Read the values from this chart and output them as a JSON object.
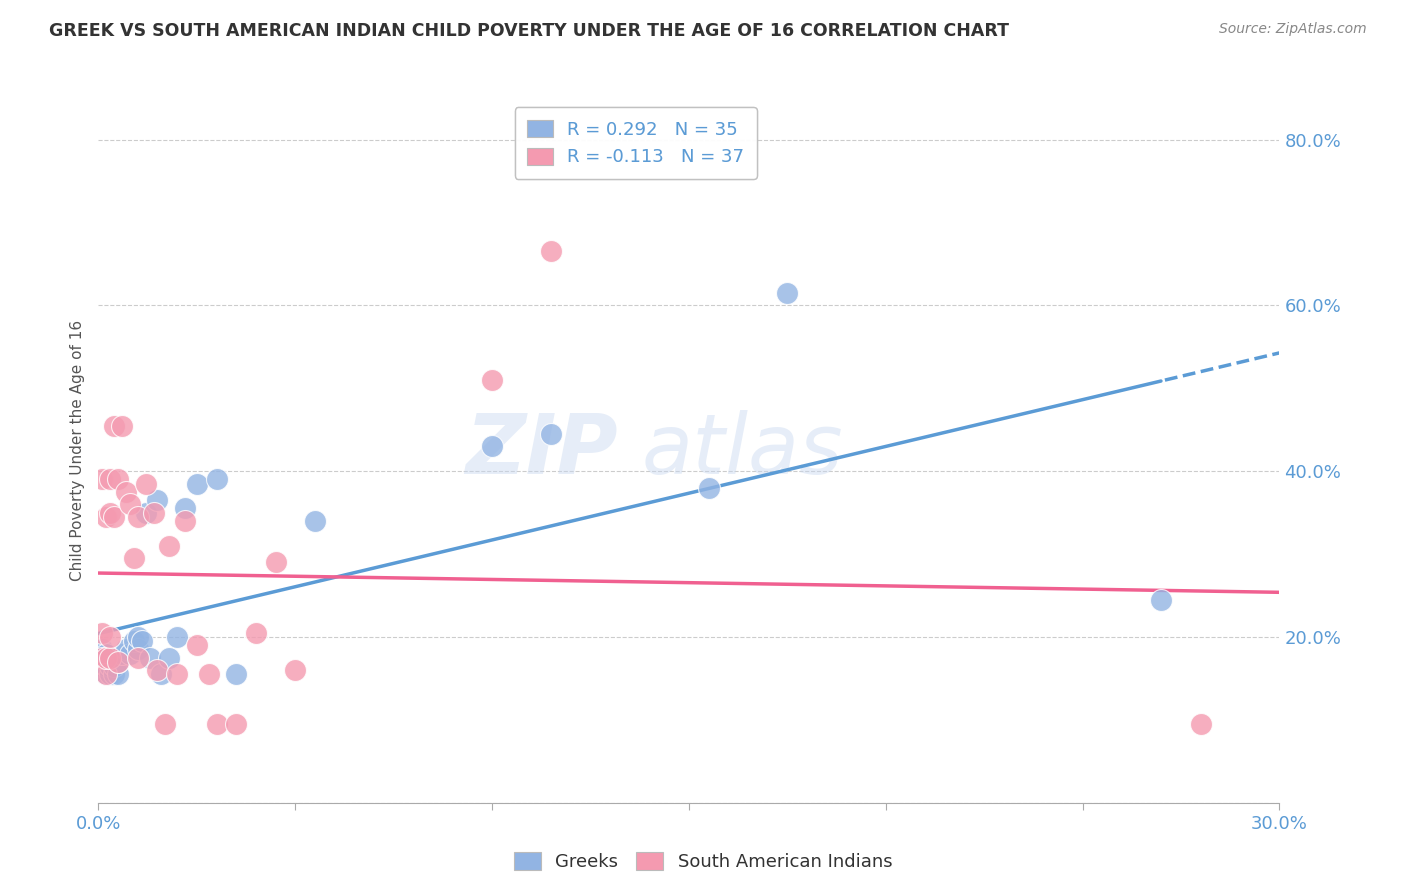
{
  "title": "GREEK VS SOUTH AMERICAN INDIAN CHILD POVERTY UNDER THE AGE OF 16 CORRELATION CHART",
  "source": "Source: ZipAtlas.com",
  "ylabel": "Child Poverty Under the Age of 16",
  "xlim": [
    0.0,
    0.3
  ],
  "ylim": [
    0.0,
    0.85
  ],
  "xticks": [
    0.0,
    0.05,
    0.1,
    0.15,
    0.2,
    0.25,
    0.3
  ],
  "yticks": [
    0.0,
    0.2,
    0.4,
    0.6,
    0.8
  ],
  "greek_color": "#92b4e3",
  "sam_color": "#f49ab0",
  "greek_line_color": "#5b9bd5",
  "sam_line_color": "#f06090",
  "axis_color": "#5b9bd5",
  "greek_R": 0.292,
  "greek_N": 35,
  "sam_R": -0.113,
  "sam_N": 37,
  "legend_label_greek": "Greeks",
  "legend_label_sam": "South American Indians",
  "watermark": "ZIPatlas",
  "greeks_x": [
    0.001,
    0.001,
    0.002,
    0.002,
    0.002,
    0.003,
    0.003,
    0.003,
    0.004,
    0.004,
    0.005,
    0.005,
    0.006,
    0.007,
    0.008,
    0.009,
    0.01,
    0.01,
    0.011,
    0.012,
    0.013,
    0.015,
    0.016,
    0.018,
    0.02,
    0.022,
    0.025,
    0.03,
    0.035,
    0.055,
    0.1,
    0.115,
    0.155,
    0.175,
    0.27
  ],
  "greeks_y": [
    0.165,
    0.185,
    0.155,
    0.165,
    0.18,
    0.155,
    0.165,
    0.175,
    0.155,
    0.165,
    0.155,
    0.17,
    0.18,
    0.185,
    0.18,
    0.195,
    0.185,
    0.2,
    0.195,
    0.35,
    0.175,
    0.365,
    0.155,
    0.175,
    0.2,
    0.355,
    0.385,
    0.39,
    0.155,
    0.34,
    0.43,
    0.445,
    0.38,
    0.615,
    0.245
  ],
  "sam_x": [
    0.001,
    0.001,
    0.001,
    0.002,
    0.002,
    0.002,
    0.003,
    0.003,
    0.003,
    0.003,
    0.004,
    0.004,
    0.005,
    0.005,
    0.006,
    0.007,
    0.008,
    0.009,
    0.01,
    0.01,
    0.012,
    0.014,
    0.015,
    0.017,
    0.018,
    0.02,
    0.022,
    0.025,
    0.028,
    0.03,
    0.035,
    0.04,
    0.045,
    0.05,
    0.1,
    0.115,
    0.28
  ],
  "sam_y": [
    0.175,
    0.205,
    0.39,
    0.155,
    0.175,
    0.345,
    0.175,
    0.2,
    0.35,
    0.39,
    0.345,
    0.455,
    0.17,
    0.39,
    0.455,
    0.375,
    0.36,
    0.295,
    0.175,
    0.345,
    0.385,
    0.35,
    0.16,
    0.095,
    0.31,
    0.155,
    0.34,
    0.19,
    0.155,
    0.095,
    0.095,
    0.205,
    0.29,
    0.16,
    0.51,
    0.665,
    0.095
  ]
}
